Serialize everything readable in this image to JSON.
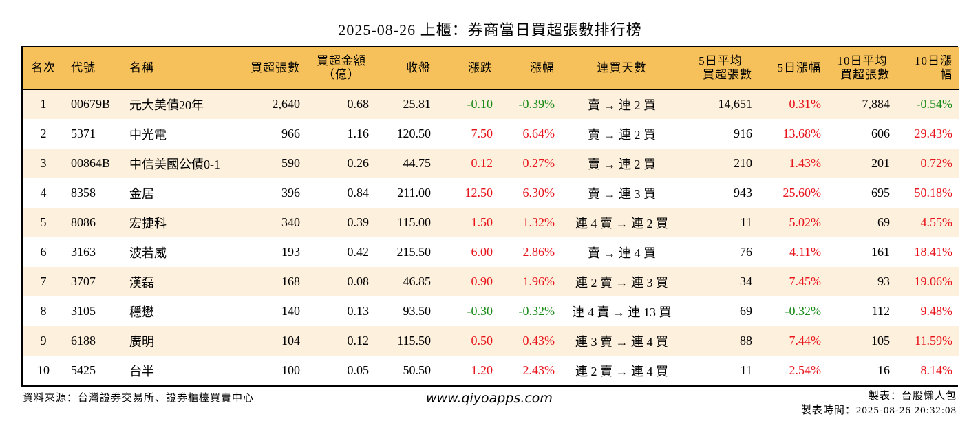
{
  "title": "2025-08-26 上櫃：券商當日買超張數排行榜",
  "colors": {
    "header_bg": "#f6c15a",
    "odd_row_bg": "#fdf0dc",
    "even_row_bg": "#ffffff",
    "up": "#e8141c",
    "down": "#1a8c1a"
  },
  "header": {
    "rank": "名次",
    "code": "代號",
    "name": "名稱",
    "net_buy_lots": "買超張數",
    "net_buy_amount_1": "買超金額",
    "net_buy_amount_2": "（億）",
    "close": "收盤",
    "change": "漲跌",
    "change_pct": "漲幅",
    "streak": "連買天數",
    "avg5_1": "5日平均",
    "avg5_2": "買超張數",
    "pct5": "5日漲幅",
    "avg10_1": "10日平均",
    "avg10_2": "買超張數",
    "pct10": "10日漲幅"
  },
  "rows": [
    {
      "rank": "1",
      "code": "00679B",
      "name": "元大美債20年",
      "lots": "2,640",
      "amount": "0.68",
      "close": "25.81",
      "change": "-0.10",
      "change_pct": "-0.39%",
      "streak": "賣 → 連 2 買",
      "avg5": "14,651",
      "pct5": "0.31%",
      "avg10": "7,884",
      "pct10": "-0.54%"
    },
    {
      "rank": "2",
      "code": "5371",
      "name": "中光電",
      "lots": "966",
      "amount": "1.16",
      "close": "120.50",
      "change": "7.50",
      "change_pct": "6.64%",
      "streak": "賣 → 連 2 買",
      "avg5": "916",
      "pct5": "13.68%",
      "avg10": "606",
      "pct10": "29.43%"
    },
    {
      "rank": "3",
      "code": "00864B",
      "name": "中信美國公債0-1",
      "lots": "590",
      "amount": "0.26",
      "close": "44.75",
      "change": "0.12",
      "change_pct": "0.27%",
      "streak": "賣 → 連 2 買",
      "avg5": "210",
      "pct5": "1.43%",
      "avg10": "201",
      "pct10": "0.72%"
    },
    {
      "rank": "4",
      "code": "8358",
      "name": "金居",
      "lots": "396",
      "amount": "0.84",
      "close": "211.00",
      "change": "12.50",
      "change_pct": "6.30%",
      "streak": "賣 → 連 3 買",
      "avg5": "943",
      "pct5": "25.60%",
      "avg10": "695",
      "pct10": "50.18%"
    },
    {
      "rank": "5",
      "code": "8086",
      "name": "宏捷科",
      "lots": "340",
      "amount": "0.39",
      "close": "115.00",
      "change": "1.50",
      "change_pct": "1.32%",
      "streak": "連 4 賣 → 連 2 買",
      "avg5": "11",
      "pct5": "5.02%",
      "avg10": "69",
      "pct10": "4.55%"
    },
    {
      "rank": "6",
      "code": "3163",
      "name": "波若威",
      "lots": "193",
      "amount": "0.42",
      "close": "215.50",
      "change": "6.00",
      "change_pct": "2.86%",
      "streak": "賣 → 連 4 買",
      "avg5": "76",
      "pct5": "4.11%",
      "avg10": "161",
      "pct10": "18.41%"
    },
    {
      "rank": "7",
      "code": "3707",
      "name": "漢磊",
      "lots": "168",
      "amount": "0.08",
      "close": "46.85",
      "change": "0.90",
      "change_pct": "1.96%",
      "streak": "連 2 賣 → 連 3 買",
      "avg5": "34",
      "pct5": "7.45%",
      "avg10": "93",
      "pct10": "19.06%"
    },
    {
      "rank": "8",
      "code": "3105",
      "name": "穩懋",
      "lots": "140",
      "amount": "0.13",
      "close": "93.50",
      "change": "-0.30",
      "change_pct": "-0.32%",
      "streak": "連 4 賣 → 連 13 買",
      "avg5": "69",
      "pct5": "-0.32%",
      "avg10": "112",
      "pct10": "9.48%"
    },
    {
      "rank": "9",
      "code": "6188",
      "name": "廣明",
      "lots": "104",
      "amount": "0.12",
      "close": "115.50",
      "change": "0.50",
      "change_pct": "0.43%",
      "streak": "連 3 賣 → 連 4 買",
      "avg5": "88",
      "pct5": "7.44%",
      "avg10": "105",
      "pct10": "11.59%"
    },
    {
      "rank": "10",
      "code": "5425",
      "name": "台半",
      "lots": "100",
      "amount": "0.05",
      "close": "50.50",
      "change": "1.20",
      "change_pct": "2.43%",
      "streak": "連 2 賣 → 連 4 買",
      "avg5": "11",
      "pct5": "2.54%",
      "avg10": "16",
      "pct10": "8.14%"
    }
  ],
  "footer": {
    "source": "資料來源：台灣證券交易所、證券櫃檯買賣中心",
    "website": "www.qiyoapps.com",
    "maker": "製表：台股懶人包",
    "made_time": "製表時間：2025-08-26 20:32:08"
  }
}
